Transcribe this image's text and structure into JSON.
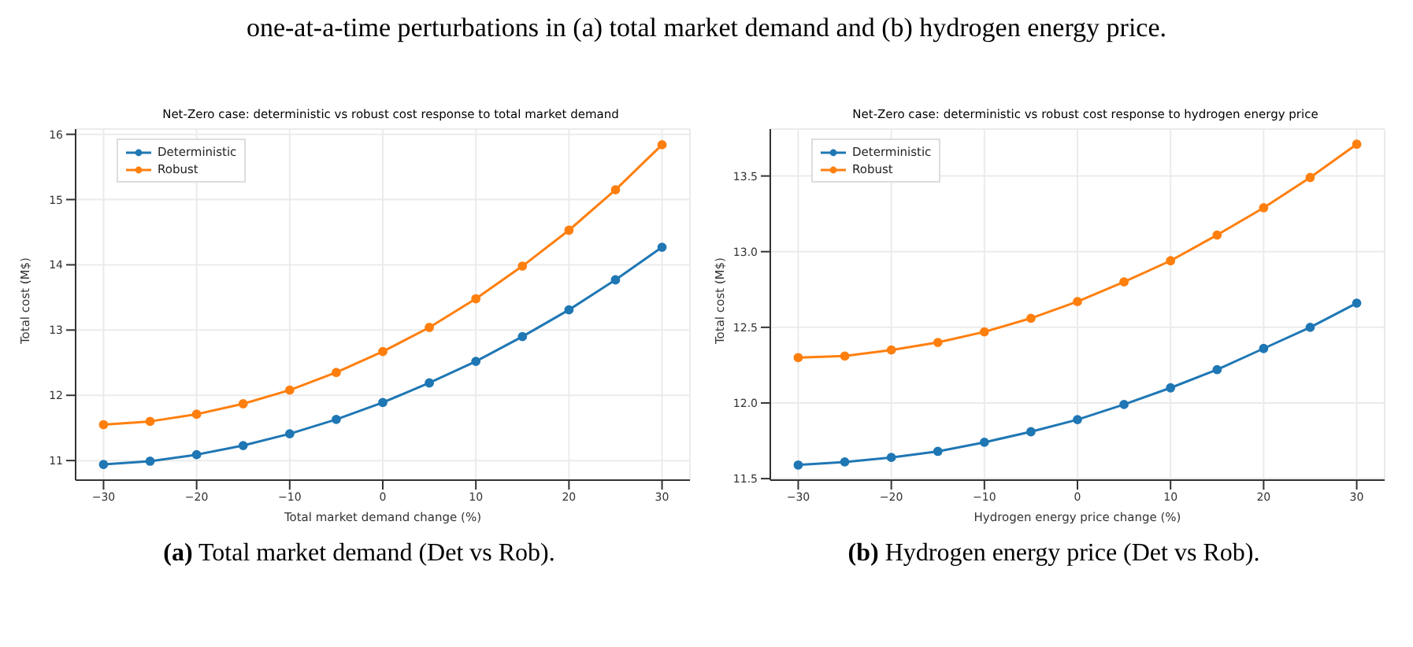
{
  "chart_data": [
    {
      "type": "line",
      "title": "Net-Zero case: deterministic vs robust cost response to total market demand",
      "xlabel": "Total market demand change (%)",
      "ylabel": "Total cost (M$)",
      "annotations": [
        "one-at-a-time perturbations in (a) total market demand and (b) hydrogen energy price.",
        "(a) Total market demand (Det vs Rob)."
      ],
      "x": [
        -30,
        -25,
        -20,
        -15,
        -10,
        -5,
        0,
        5,
        10,
        15,
        20,
        25,
        30
      ],
      "xlim": [
        -33,
        33
      ],
      "xticks": [
        -30,
        -20,
        -10,
        0,
        10,
        20,
        30
      ],
      "ylim": [
        10.7,
        16.08
      ],
      "yticks": [
        11,
        12,
        13,
        14,
        15,
        16
      ],
      "grid": true,
      "legend": "top left",
      "marker": "circle",
      "line_style": "solid",
      "series": [
        {
          "name": "Deterministic",
          "color": "#1f77b4",
          "values": [
            10.94,
            10.99,
            11.09,
            11.23,
            11.41,
            11.63,
            11.89,
            12.19,
            12.52,
            12.9,
            13.31,
            13.77,
            14.27
          ]
        },
        {
          "name": "Robust",
          "color": "#ff7f0e",
          "values": [
            11.55,
            11.6,
            11.71,
            11.87,
            12.08,
            12.35,
            12.67,
            13.04,
            13.48,
            13.98,
            14.53,
            15.15,
            15.84
          ]
        }
      ]
    },
    {
      "type": "line",
      "title": "Net-Zero case: deterministic vs robust cost response to hydrogen energy price",
      "xlabel": "Hydrogen energy price change (%)",
      "ylabel": "Total cost (M$)",
      "annotations": [
        "(b) Hydrogen energy price (Det vs Rob)."
      ],
      "x": [
        -30,
        -25,
        -20,
        -15,
        -10,
        -5,
        0,
        5,
        10,
        15,
        20,
        25,
        30
      ],
      "xlim": [
        -33,
        33
      ],
      "xticks": [
        -30,
        -20,
        -10,
        0,
        10,
        20,
        30
      ],
      "ylim": [
        11.49,
        13.81
      ],
      "yticks": [
        {
          "value": 11.5,
          "label": "11.5"
        },
        {
          "value": 12,
          "label": "12.0"
        },
        {
          "value": 12.5,
          "label": "12.5"
        },
        {
          "value": 13,
          "label": "13.0"
        },
        {
          "value": 13.5,
          "label": "13.5"
        }
      ],
      "grid": true,
      "legend": "top left",
      "marker": "circle",
      "line_style": "solid",
      "series": [
        {
          "name": "Deterministic",
          "color": "#1f77b4",
          "values": [
            11.59,
            11.61,
            11.64,
            11.68,
            11.74,
            11.81,
            11.89,
            11.99,
            12.1,
            12.22,
            12.36,
            12.5,
            12.66
          ]
        },
        {
          "name": "Robust",
          "color": "#ff7f0e",
          "values": [
            12.3,
            12.31,
            12.35,
            12.4,
            12.47,
            12.56,
            12.67,
            12.8,
            12.94,
            13.11,
            13.29,
            13.49,
            13.71
          ]
        }
      ]
    }
  ]
}
